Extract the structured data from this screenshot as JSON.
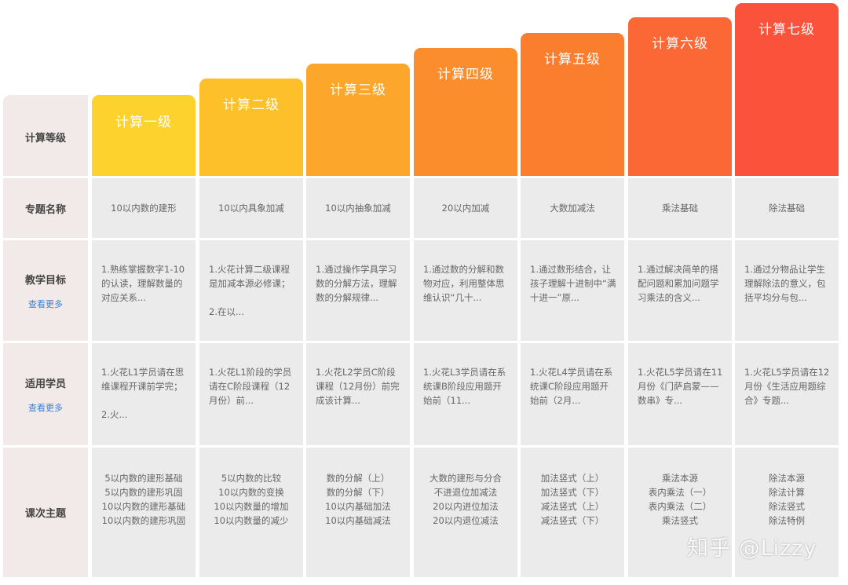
{
  "row_labels": {
    "level": "计算等级",
    "topic": "专题名称",
    "goal": "教学目标",
    "students": "适用学员",
    "lessons": "课次主题"
  },
  "more_link": "查看更多",
  "levels": [
    {
      "name": "计算一级",
      "color": "#fdd22c",
      "topic": "10以内数的建形",
      "goal": "1.熟练掌握数字1-10的认读，理解数量的对应关系...",
      "students": "1.火花L1学员请在思维课程开课前学完；\n\n2.火...",
      "lessons": [
        "5以内数的建形基础",
        "5以内数的建形巩固",
        "10以内数的建形基础",
        "10以内数的建形巩固"
      ]
    },
    {
      "name": "计算二级",
      "color": "#fdbf2a",
      "topic": "10以内具象加减",
      "goal": "1.火花计算二级课程是加减本源必修课；\n\n2.在以...",
      "students": "1.火花L1阶段的学员请在C阶段课程（12月份）前...",
      "lessons": [
        "5以内数的比较",
        "10以内数的变换",
        "10以内数量的增加",
        "10以内数量的减少"
      ]
    },
    {
      "name": "计算三级",
      "color": "#fca62c",
      "topic": "10以内抽象加减",
      "goal": "1.通过操作学具学习数的分解方法，理解数的分解规律...",
      "students": "1.火花L2学员C阶段课程（12月份）前完成该计算...",
      "lessons": [
        "数的分解（上）",
        "数的分解（下）",
        "10以内基础加法",
        "10以内基础减法"
      ]
    },
    {
      "name": "计算四级",
      "color": "#fb8d2d",
      "topic": "20以内加减",
      "goal": "1.通过数的分解和数物对应，利用整体思维认识“几十...",
      "students": "1.火花L3学员请在系统课B阶段应用题开始前（11...",
      "lessons": [
        "大数的建形与分合",
        "不进退位加减法",
        "20以内进位加法",
        "20以内退位减法"
      ]
    },
    {
      "name": "计算五级",
      "color": "#fb7e2f",
      "topic": "大数加减法",
      "goal": "1.通过数形结合，让孩子理解十进制中“满十进一”原...",
      "students": "1.火花L4学员请在系统课C阶段应用题开始前（2月...",
      "lessons": [
        "加法竖式（上）",
        "加法竖式（下）",
        "减法竖式（上）",
        "减法竖式（下）"
      ]
    },
    {
      "name": "计算六级",
      "color": "#fb6735",
      "topic": "乘法基础",
      "goal": "1.通过解决简单的搭配问题和累加问题学习乘法的含义...",
      "students": "1.火花L5学员请在11月份《门萨启蒙——数串》专...",
      "lessons": [
        "乘法本源",
        "表内乘法（一）",
        "表内乘法（二）",
        "乘法竖式"
      ]
    },
    {
      "name": "计算七级",
      "color": "#fb533b",
      "topic": "除法基础",
      "goal": "1.通过分物品让学生理解除法的意义，包括平均分与包...",
      "students": "1.火花L5学员请在12月份《生活应用题综合》专题...",
      "lessons": [
        "除法本源",
        "除法计算",
        "除法竖式",
        "除法特例"
      ]
    }
  ],
  "watermark": "知乎 @Lizzy"
}
